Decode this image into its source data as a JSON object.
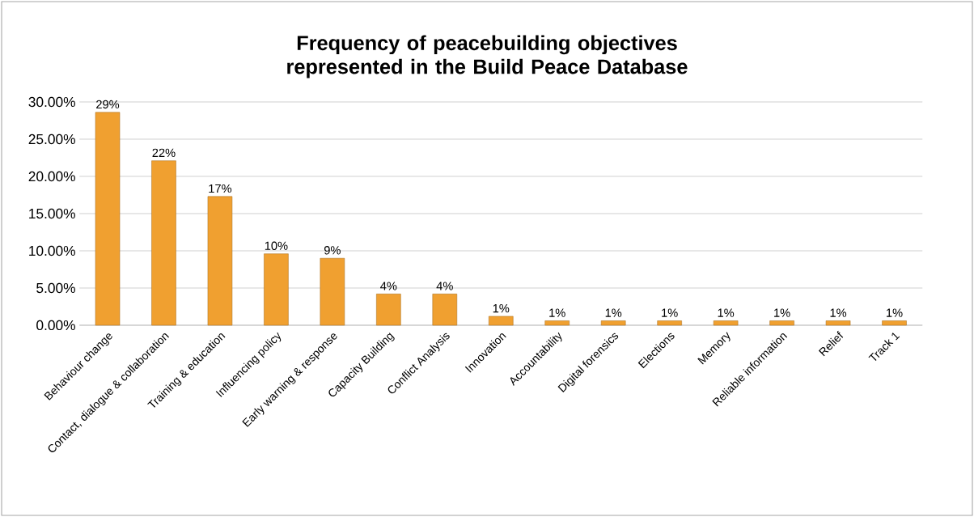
{
  "chart_data": {
    "type": "bar",
    "title": "Frequency of peacebuilding objectives represented in the Build Peace Database",
    "categories": [
      "Behaviour change",
      "Contact, dialogue & collaboration",
      "Training & education",
      "Influencing policy",
      "Early warning & response",
      "Capacity Building",
      "Conflict Analysis",
      "Innovation",
      "Accountability",
      "Digital forensics",
      "Elections",
      "Memory",
      "Reliable information",
      "Relief",
      "Track 1"
    ],
    "values": [
      28.6,
      22.1,
      17.3,
      9.6,
      9.0,
      4.2,
      4.2,
      1.2,
      0.6,
      0.6,
      0.6,
      0.6,
      0.6,
      0.6,
      0.6
    ],
    "value_labels": [
      "29%",
      "22%",
      "17%",
      "10%",
      "9%",
      "4%",
      "4%",
      "1%",
      "1%",
      "1%",
      "1%",
      "1%",
      "1%",
      "1%",
      "1%"
    ],
    "color": "#f0a030",
    "ylim": [
      0,
      30
    ],
    "yticks": [
      {
        "value": 0,
        "label": "0.00%"
      },
      {
        "value": 5,
        "label": "5.00%"
      },
      {
        "value": 10,
        "label": "10.00%"
      },
      {
        "value": 15,
        "label": "15.00%"
      },
      {
        "value": 20,
        "label": "20.00%"
      },
      {
        "value": 25,
        "label": "25.00%"
      },
      {
        "value": 30,
        "label": "30.00%"
      }
    ],
    "grid": "y"
  }
}
